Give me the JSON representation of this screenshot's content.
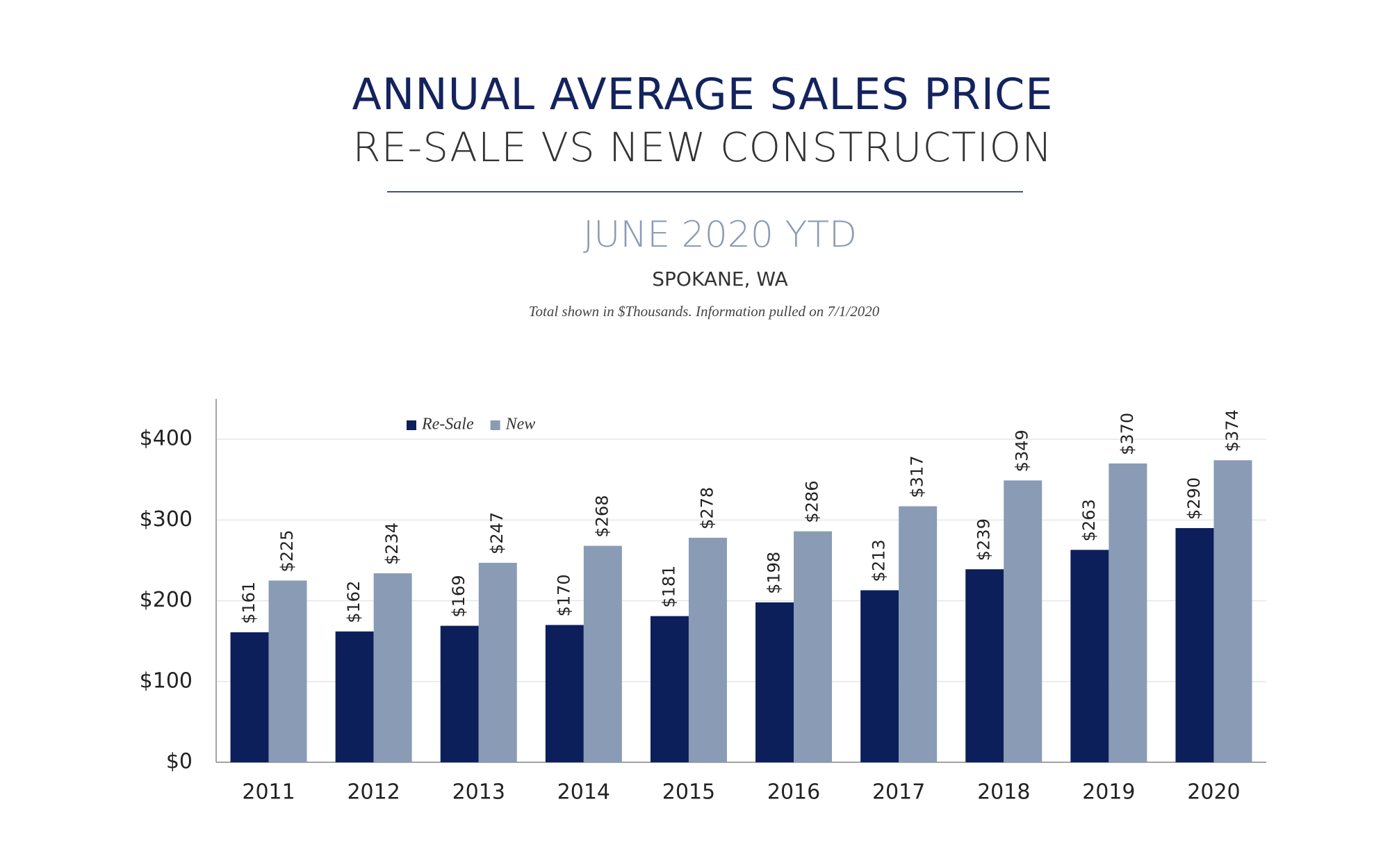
{
  "chart_data": {
    "type": "bar",
    "title": "ANNUAL AVERAGE SALES PRICE",
    "subtitle": "RE-SALE VS NEW CONSTRUCTION",
    "annotations": [
      "JUNE 2020 YTD",
      "SPOKANE, WA",
      "Total shown in $Thousands. Information pulled on 7/1/2020"
    ],
    "categories": [
      "2011",
      "2012",
      "2013",
      "2014",
      "2015",
      "2016",
      "2017",
      "2018",
      "2019",
      "2020"
    ],
    "series": [
      {
        "name": "Re-Sale",
        "color": "#0c1f5b",
        "values": [
          161,
          162,
          169,
          170,
          181,
          198,
          213,
          239,
          263,
          290
        ],
        "value_labels": [
          "$161",
          "$162",
          "$169",
          "$170",
          "$181",
          "$198",
          "$213",
          "$239",
          "$263",
          "$290"
        ]
      },
      {
        "name": "New",
        "color": "#8a9bb6",
        "values": [
          225,
          234,
          247,
          268,
          278,
          286,
          317,
          349,
          370,
          374
        ],
        "value_labels": [
          "$225",
          "$234",
          "$247",
          "$268",
          "$278",
          "$286",
          "$317",
          "$349",
          "$370",
          "$374"
        ]
      }
    ],
    "ylim": [
      0,
      450
    ],
    "yticks": [
      {
        "value": 0,
        "label": "$0"
      },
      {
        "value": 100,
        "label": "$100"
      },
      {
        "value": 200,
        "label": "$200"
      },
      {
        "value": 300,
        "label": "$300"
      },
      {
        "value": 400,
        "label": "$400"
      }
    ],
    "grid": true,
    "legend": "upper left"
  }
}
